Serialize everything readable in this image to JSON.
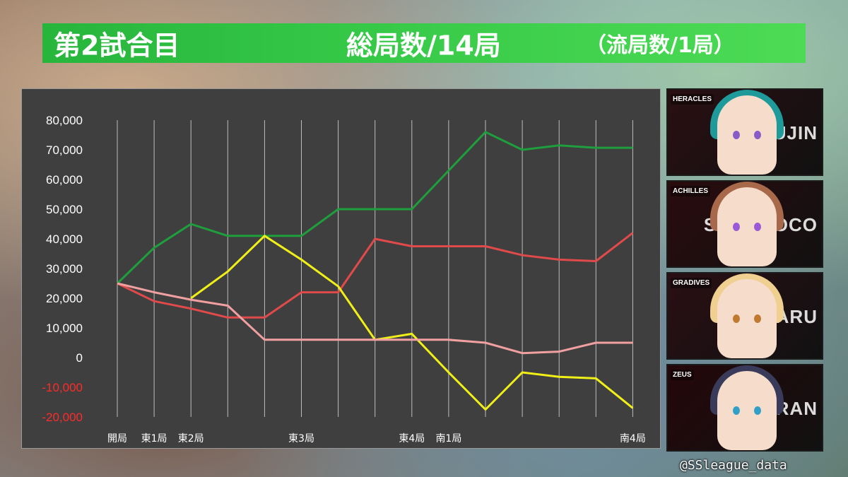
{
  "banner": {
    "game": "第2試合目",
    "total_rounds": "総局数/14局",
    "draw_rounds": "（流局数/1局）"
  },
  "chart_data": {
    "type": "line",
    "ylim": [
      -20000,
      80000
    ],
    "yticks": [
      80000,
      70000,
      60000,
      50000,
      40000,
      30000,
      20000,
      10000,
      0,
      -10000,
      -20000
    ],
    "ytick_labels": [
      "80,000",
      "70,000",
      "60,000",
      "50,000",
      "40,000",
      "30,000",
      "20,000",
      "10,000",
      "0",
      "-10,000",
      "-20,000"
    ],
    "x_count": 15,
    "x_labels": [
      "開局",
      "東1局",
      "東2局",
      "",
      "",
      "東3局",
      "",
      "",
      "東4局",
      "南1局",
      "",
      "",
      "",
      "",
      "南4局"
    ],
    "grid": "vertical",
    "series": [
      {
        "color": "#1e9e3c",
        "values": [
          25000,
          37000,
          45000,
          41000,
          41000,
          41000,
          50000,
          50000,
          50000,
          63000,
          76000,
          70000,
          71500,
          70700,
          70700
        ]
      },
      {
        "color": "#e04a4a",
        "values": [
          25000,
          19000,
          16500,
          13500,
          13500,
          22000,
          22000,
          40000,
          37500,
          37500,
          37500,
          34500,
          33000,
          32500,
          42000
        ]
      },
      {
        "color": "#f0f018",
        "values": [
          null,
          null,
          20000,
          29000,
          41000,
          33000,
          24000,
          6000,
          8000,
          -5000,
          -17500,
          -5000,
          -6500,
          -7000,
          -17000
        ]
      },
      {
        "color": "#f0a0a0",
        "values": [
          25000,
          22000,
          19500,
          17500,
          6000,
          6000,
          6000,
          6000,
          6000,
          6000,
          5000,
          1500,
          2000,
          5000,
          5000
        ]
      }
    ]
  },
  "players": [
    {
      "team": "HERACLES",
      "name": "RYUJIN",
      "bg": "#2a0f12",
      "hair": "#1f9a9a",
      "eye": "#8a5ac8"
    },
    {
      "team": "ACHILLES",
      "name": "SAKOCOCO",
      "bg": "#2a0b0e",
      "hair": "#a8694a",
      "eye": "#9a5ad8"
    },
    {
      "team": "GRADIVES",
      "name": "INARU",
      "bg": "#2a0f14",
      "hair": "#f0d090",
      "eye": "#c07a30"
    },
    {
      "team": "ZEUS",
      "name": "KIRAN",
      "bg": "#25070a",
      "hair": "#3a3a5a",
      "eye": "#30a0c8"
    }
  ],
  "credit": "@SSleague_data"
}
